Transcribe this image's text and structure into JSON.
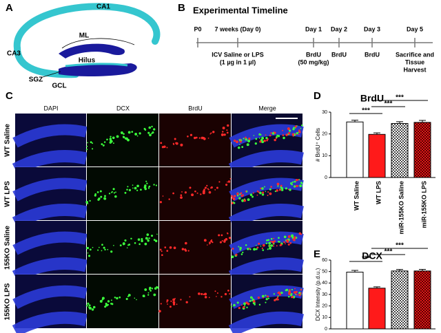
{
  "panels": {
    "a": {
      "label": "A",
      "regions": [
        "CA1",
        "ML",
        "CA3",
        "Hilus",
        "SGZ",
        "GCL"
      ]
    },
    "b": {
      "label": "B",
      "title": "Experimental Timeline",
      "timepoints": [
        {
          "top": [
            "P0"
          ],
          "bottom": []
        },
        {
          "top": [
            "7 weeks (Day 0)"
          ],
          "bottom": [
            "ICV Saline or LPS",
            "(1 µg in 1 µl)"
          ]
        },
        {
          "top": [
            "Day 1"
          ],
          "bottom": [
            "BrdU",
            "(50 mg/kg)"
          ]
        },
        {
          "top": [
            "Day 2"
          ],
          "bottom": [
            "BrdU"
          ]
        },
        {
          "top": [
            "Day 3"
          ],
          "bottom": [
            "BrdU"
          ]
        },
        {
          "top": [
            "Day 5"
          ],
          "bottom": [
            "Sacrifice and",
            "Tissue",
            "Harvest"
          ]
        }
      ]
    },
    "c": {
      "label": "C",
      "columns": [
        "DAPI",
        "DCX",
        "BrdU",
        "Merge"
      ],
      "rows": [
        "WT Saline",
        "WT LPS",
        "155KO Saline",
        "155KO LPS"
      ]
    }
  },
  "chart_data": [
    {
      "type": "bar",
      "label": "D",
      "title": "BrdU",
      "y_label": "# BrdU⁺ Cells",
      "categories": [
        "WT Saline",
        "WT LPS",
        "miR-155KO Saline",
        "miR-155KO LPS"
      ],
      "values": [
        25.5,
        19.8,
        24.8,
        25.3
      ],
      "errors": [
        0.8,
        0.7,
        0.8,
        0.9
      ],
      "colors": [
        "#ffffff",
        "#ff1a1a",
        "#ffffff",
        "#d01010"
      ],
      "checkered": [
        false,
        false,
        true,
        true
      ],
      "significance": [
        "***",
        "***",
        "***"
      ],
      "ylim": [
        0,
        30
      ],
      "yticks": [
        0,
        10,
        20,
        30
      ]
    },
    {
      "type": "bar",
      "label": "E",
      "title": "DCX",
      "y_label": "DCX Intensity (p.d.u.)",
      "categories": [
        null,
        null,
        null,
        null
      ],
      "values": [
        49.5,
        35.5,
        50.5,
        50.5
      ],
      "errors": [
        1.5,
        1.2,
        1.3,
        1.4
      ],
      "colors": [
        "#ffffff",
        "#ff1a1a",
        "#ffffff",
        "#d01010"
      ],
      "checkered": [
        false,
        false,
        true,
        true
      ],
      "significance": [
        "***",
        "***",
        "***"
      ],
      "ylim": [
        0,
        60
      ],
      "yticks": [
        0,
        10,
        20,
        30,
        40,
        50,
        60
      ]
    }
  ]
}
